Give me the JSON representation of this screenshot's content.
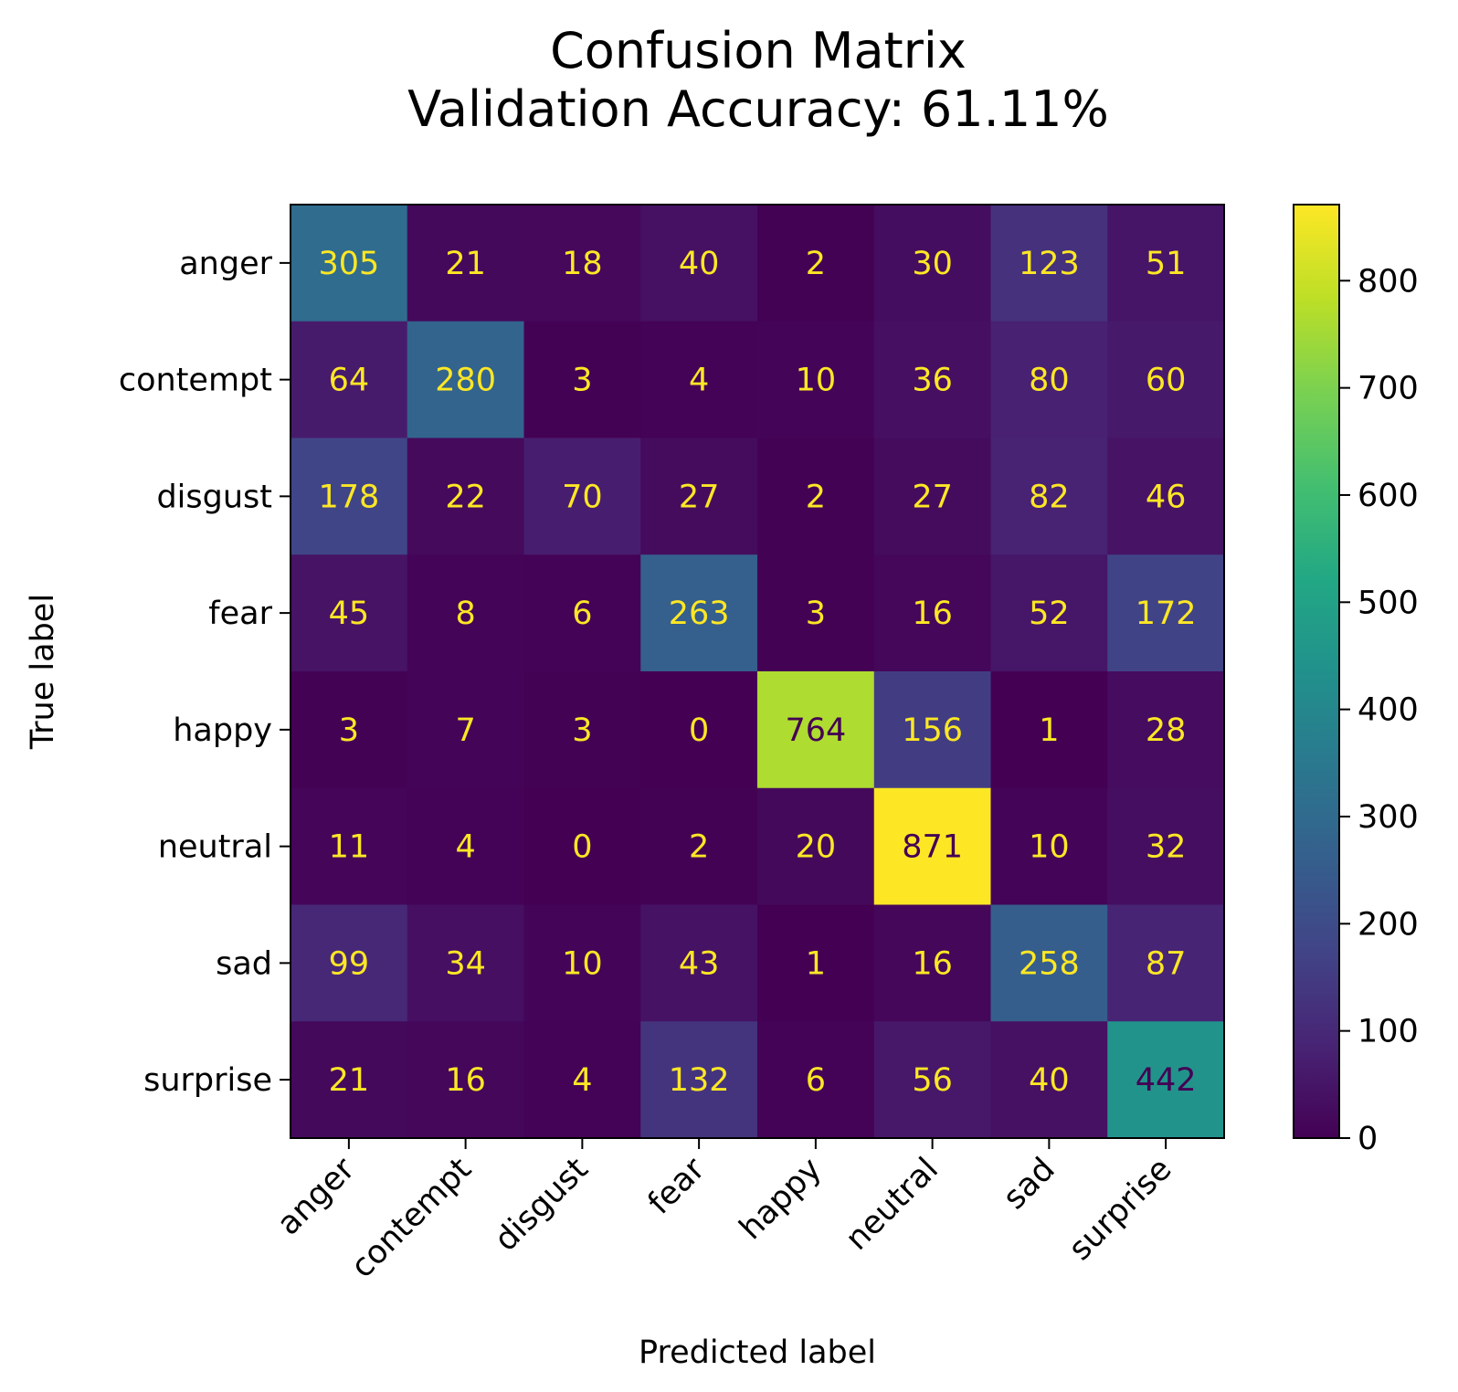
{
  "chart_data": {
    "type": "heatmap",
    "title": "Confusion Matrix",
    "subtitle": "Validation Accuracy: 61.11%",
    "xlabel": "Predicted label",
    "ylabel": "True label",
    "x_categories": [
      "anger",
      "contempt",
      "disgust",
      "fear",
      "happy",
      "neutral",
      "sad",
      "surprise"
    ],
    "y_categories": [
      "anger",
      "contempt",
      "disgust",
      "fear",
      "happy",
      "neutral",
      "sad",
      "surprise"
    ],
    "values": [
      [
        305,
        21,
        18,
        40,
        2,
        30,
        123,
        51
      ],
      [
        64,
        280,
        3,
        4,
        10,
        36,
        80,
        60
      ],
      [
        178,
        22,
        70,
        27,
        2,
        27,
        82,
        46
      ],
      [
        45,
        8,
        6,
        263,
        3,
        16,
        52,
        172
      ],
      [
        3,
        7,
        3,
        0,
        764,
        156,
        1,
        28
      ],
      [
        11,
        4,
        0,
        2,
        20,
        871,
        10,
        32
      ],
      [
        99,
        34,
        10,
        43,
        1,
        16,
        258,
        87
      ],
      [
        21,
        16,
        4,
        132,
        6,
        56,
        40,
        442
      ]
    ],
    "colormap": "viridis",
    "colorbar": {
      "range": [
        0,
        871
      ],
      "ticks": [
        0,
        100,
        200,
        300,
        400,
        500,
        600,
        700,
        800
      ]
    },
    "grid": false
  }
}
